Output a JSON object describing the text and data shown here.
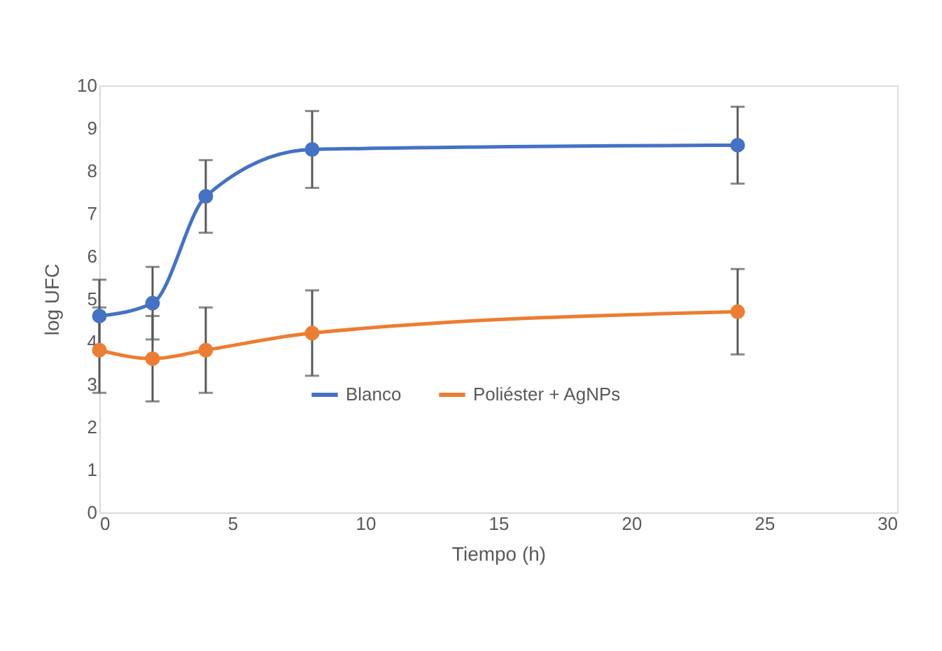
{
  "chart_data": {
    "type": "line",
    "xlabel": "Tiempo (h)",
    "ylabel": "log UFC",
    "x": [
      0,
      2,
      4,
      8,
      24
    ],
    "series": [
      {
        "name": "Blanco",
        "color": "#4472c4",
        "values": [
          4.6,
          4.9,
          7.4,
          8.5,
          8.6
        ],
        "errors": [
          0.85,
          0.85,
          0.85,
          0.9,
          0.9
        ]
      },
      {
        "name": "Poliéster + AgNPs",
        "color": "#ed7d31",
        "values": [
          3.8,
          3.6,
          3.8,
          4.2,
          4.7
        ],
        "errors": [
          1.0,
          1.0,
          1.0,
          1.0,
          1.0
        ]
      }
    ],
    "xlim": [
      0,
      30
    ],
    "xticks": [
      0,
      5,
      10,
      15,
      20,
      25,
      30
    ],
    "ylim": [
      0,
      10
    ],
    "yticks": [
      0,
      1,
      2,
      3,
      4,
      5,
      6,
      7,
      8,
      9,
      10
    ],
    "grid": false,
    "legend": "center",
    "marker": "circle",
    "line_style": "solid"
  }
}
